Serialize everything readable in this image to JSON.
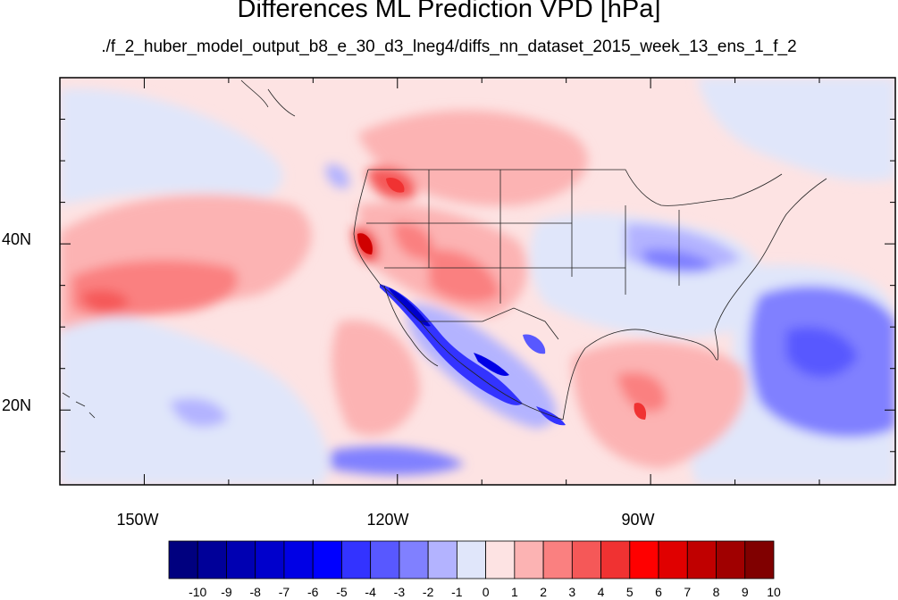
{
  "title": "Differences ML Prediction VPD [hPa]",
  "subtitle": "./f_2_huber_model_output_b8_e_30_d3_lneg4/diffs_nn_dataset_2015_week_13_ens_1_f_2",
  "map": {
    "lon_range": [
      -160,
      -61
    ],
    "lat_range": [
      11,
      60
    ],
    "lat_labels": [
      {
        "value": 40,
        "label": "40N"
      },
      {
        "value": 20,
        "label": "20N"
      }
    ],
    "lon_labels": [
      {
        "value": -150,
        "label": "150W"
      },
      {
        "value": -120,
        "label": "120W"
      },
      {
        "value": -90,
        "label": "90W"
      }
    ]
  },
  "colorbar": {
    "labels": [
      "-10",
      "-9",
      "-8",
      "-7",
      "-6",
      "-5",
      "-4",
      "-3",
      "-2",
      "-1",
      "0",
      "1",
      "2",
      "3",
      "4",
      "5",
      "6",
      "7",
      "8",
      "9",
      "10"
    ],
    "colors": [
      "#00007f",
      "#000099",
      "#0000b2",
      "#0000cc",
      "#0000e5",
      "#0000ff",
      "#3333ff",
      "#5858ff",
      "#8080ff",
      "#b3b3ff",
      "#e0e6fa",
      "#fde3e3",
      "#fcb3b3",
      "#fa8080",
      "#f55858",
      "#f03232",
      "#ff0000",
      "#e00000",
      "#c00000",
      "#a00000",
      "#800000"
    ]
  }
}
